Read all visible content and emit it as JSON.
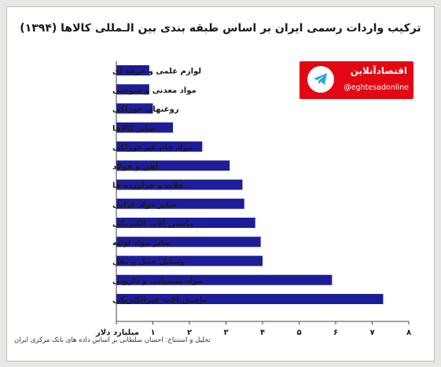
{
  "brand": {
    "name": "اقتصادآنلاین",
    "handle": "@eghtesadonline",
    "icon": "telegram-icon",
    "color": "#e30613"
  },
  "source": "تحلیل و استنتاج: احسان سلطانی بر اساس داده های بانک مرکزی ایران",
  "chart_data": {
    "type": "bar",
    "orientation": "horizontal",
    "title": "ترکیب واردات رسمی ایران بر اساس طبقه بندی بین الـمللی کالاها (۱۳۹۴)",
    "xlabel": "میلیارد دلار",
    "xlim": [
      0,
      8
    ],
    "xticks": [
      "۰",
      "۱",
      "۲",
      "۳",
      "۴",
      "۵",
      "۶",
      "۷",
      "۸"
    ],
    "bar_color": "#1d1d9a",
    "categories": [
      "لوازم علمی و حرفه ای",
      "مواد معدنی و سوختی",
      "روغنهای خوراکی",
      "سایر کالاها",
      "مواد خام غیرخوراکی",
      "آهن و فولاد",
      "غلات و فرآورده ها",
      "سایر مواد غذایی",
      "ماشین آلات الکتریکی",
      "سایر مواد اولیه",
      "وسایل حمل و نقل",
      "مواد شیمیایی و دارویی",
      "ماشین آلات غیرالکتریکی"
    ],
    "values": [
      0.9,
      0.9,
      1.0,
      1.55,
      2.35,
      3.1,
      3.45,
      3.5,
      3.8,
      3.95,
      4.0,
      5.9,
      7.3
    ]
  }
}
